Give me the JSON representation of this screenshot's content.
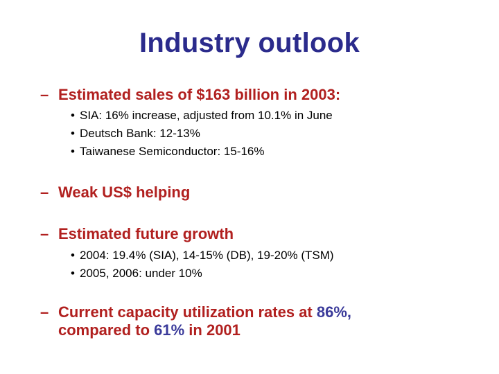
{
  "slide": {
    "title": "Industry outlook",
    "dash": "–",
    "bullet": "•",
    "point1": {
      "text": "Estimated sales of $163 billion in 2003:",
      "subs": [
        "SIA: 16% increase, adjusted from 10.1% in June",
        "Deutsch Bank: 12-13%",
        "Taiwanese Semiconductor: 15-16%"
      ]
    },
    "point2": {
      "text": "Weak US$ helping"
    },
    "point3": {
      "text": "Estimated future growth",
      "subs": [
        "2004: 19.4% (SIA), 14-15% (DB), 19-20% (TSM)",
        "2005, 2006: under 10%"
      ]
    },
    "point4": {
      "part1": "Current capacity utilization rates at ",
      "value1": "86%",
      "part2": ",",
      "part3": "compared to ",
      "value2": "61%",
      "part4": " in 2001"
    }
  },
  "colors": {
    "title": "#2b2b8c",
    "main_bullets": "#b1201f",
    "highlight": "#3a3a9a",
    "sub_bullets": "#000000"
  }
}
